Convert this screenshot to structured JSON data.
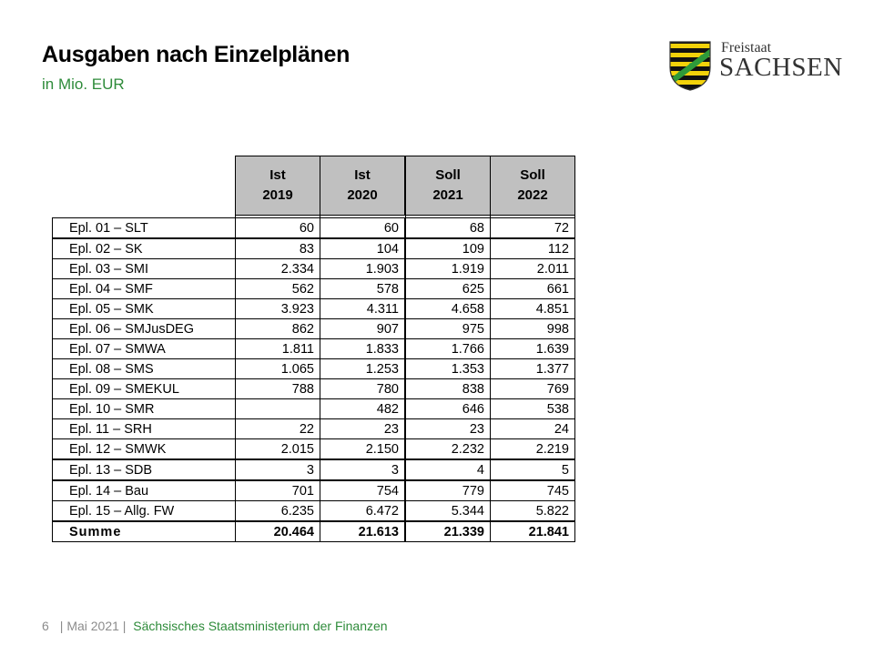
{
  "header": {
    "title": "Ausgaben nach Einzelplänen",
    "subtitle": "in Mio. EUR"
  },
  "logo": {
    "line1": "Freistaat",
    "line2": "SACHSEN",
    "icon": "saxony-coat-of-arms-icon",
    "colors": {
      "green": "#2e9a3a",
      "yellow": "#f2d20a",
      "black": "#111111"
    }
  },
  "table": {
    "columns": [
      {
        "line1": "Ist",
        "line2": "2019"
      },
      {
        "line1": "Ist",
        "line2": "2020"
      },
      {
        "line1": "Soll",
        "line2": "2021"
      },
      {
        "line1": "Soll",
        "line2": "2022"
      }
    ],
    "rows": [
      {
        "label": "Epl. 01 – SLT",
        "values": [
          "60",
          "60",
          "68",
          "72"
        ]
      },
      {
        "label": "Epl. 02 – SK",
        "values": [
          "83",
          "104",
          "109",
          "112"
        ]
      },
      {
        "label": "Epl. 03 – SMI",
        "values": [
          "2.334",
          "1.903",
          "1.919",
          "2.011"
        ]
      },
      {
        "label": "Epl. 04 – SMF",
        "values": [
          "562",
          "578",
          "625",
          "661"
        ]
      },
      {
        "label": "Epl. 05 – SMK",
        "values": [
          "3.923",
          "4.311",
          "4.658",
          "4.851"
        ]
      },
      {
        "label": "Epl. 06 – SMJusDEG",
        "values": [
          "862",
          "907",
          "975",
          "998"
        ]
      },
      {
        "label": "Epl. 07 – SMWA",
        "values": [
          "1.811",
          "1.833",
          "1.766",
          "1.639"
        ]
      },
      {
        "label": "Epl. 08 – SMS",
        "values": [
          "1.065",
          "1.253",
          "1.353",
          "1.377"
        ]
      },
      {
        "label": "Epl. 09 – SMEKUL",
        "values": [
          "788",
          "780",
          "838",
          "769"
        ]
      },
      {
        "label": "Epl. 10 – SMR",
        "values": [
          "",
          "482",
          "646",
          "538"
        ]
      },
      {
        "label": "Epl. 11 – SRH",
        "values": [
          "22",
          "23",
          "23",
          "24"
        ]
      },
      {
        "label": "Epl. 12 – SMWK",
        "values": [
          "2.015",
          "2.150",
          "2.232",
          "2.219"
        ]
      },
      {
        "label": "Epl. 13 – SDB",
        "values": [
          "3",
          "3",
          "4",
          "5"
        ]
      },
      {
        "label": "Epl. 14 – Bau",
        "values": [
          "701",
          "754",
          "779",
          "745"
        ]
      },
      {
        "label": "Epl. 15 – Allg. FW",
        "values": [
          "6.235",
          "6.472",
          "5.344",
          "5.822"
        ]
      }
    ],
    "sum": {
      "label": "Summe",
      "values": [
        "20.464",
        "21.613",
        "21.339",
        "21.841"
      ]
    }
  },
  "footer": {
    "page": "6",
    "date": "| Mai 2021 |",
    "ministry": "Sächsisches Staatsministerium der Finanzen"
  }
}
